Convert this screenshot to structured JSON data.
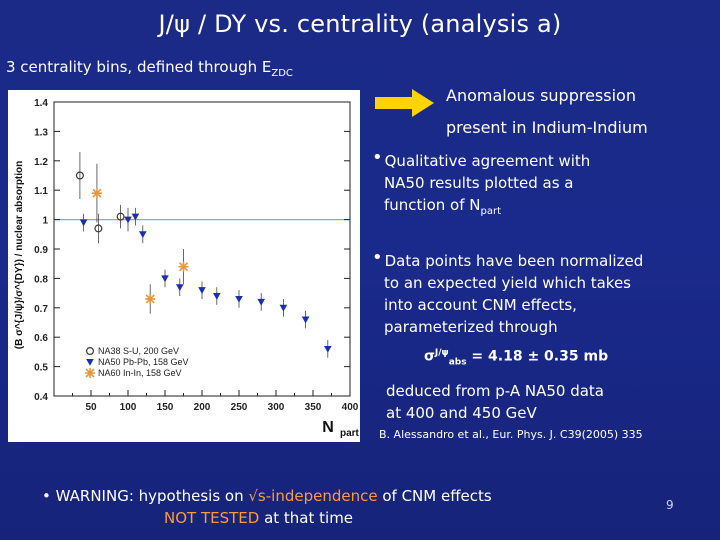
{
  "title": "J/ψ / DY vs. centrality (analysis a)",
  "bins_line": {
    "text": "3 centrality bins, defined through E",
    "sub": "ZDC"
  },
  "anomalous": {
    "line1": "Anomalous suppression",
    "line2": "present in Indium-Indium"
  },
  "bullet1": {
    "line1": "Qualitative agreement with",
    "line2": "NA50 results plotted as a",
    "line3_pre": "function of N",
    "line3_sub": "part"
  },
  "bullet2": {
    "line1": "Data points have been normalized",
    "line2": "to an expected yield which takes",
    "line3": "into account CNM effects,",
    "line4": "parameterized through"
  },
  "sigma": {
    "symbol": "σ",
    "sup": "J/ψ",
    "sub": "abs",
    "rest": " = 4.18 ± 0.35 mb"
  },
  "deduced": {
    "line1": "deduced from p-A NA50 data",
    "line2": "at 400 and 450 GeV"
  },
  "reference": "B. Alessandro et al., Eur. Phys. J. C39(2005) 335",
  "warning": {
    "bullet": "•",
    "pre": "WARNING: hypothesis on ",
    "highlight": "√s-independence",
    "post": " of CNM effects",
    "line2_highlight": "NOT TESTED",
    "line2_post": " at that time"
  },
  "page_number": "9",
  "colors": {
    "background": "#1b2a86",
    "accent": "#ff9a3a",
    "arrow": "#ffd400",
    "s_u": "#3a3a3a",
    "pb_pb": "#1a2fb0",
    "in_in": "#e8963c"
  },
  "chart_data": {
    "type": "scatter",
    "xlabel": "N",
    "xlabel_sub": "part",
    "ylabel": "(B σ^{J/ψ}/σ^{DY}) / nuclear absorption",
    "xlim": [
      0,
      400
    ],
    "ylim": [
      0.4,
      1.4
    ],
    "xticks": [
      "50",
      "100",
      "150",
      "200",
      "250",
      "300",
      "350",
      "400"
    ],
    "yticks": [
      "0.4",
      "0.5",
      "0.6",
      "0.7",
      "0.8",
      "0.9",
      "1",
      "1.1",
      "1.2",
      "1.3",
      "1.4"
    ],
    "reference_line": 1.0,
    "legend_position": "bottom-left",
    "series": [
      {
        "name": "NA38 S-U, 200 GeV",
        "marker": "open-circle",
        "x": [
          35,
          60,
          90
        ],
        "y": [
          1.15,
          0.97,
          1.01
        ],
        "err": [
          0.08,
          0.05,
          0.04
        ]
      },
      {
        "name": "NA50 Pb-Pb, 158 GeV",
        "marker": "triangle-down",
        "x": [
          40,
          100,
          110,
          120,
          150,
          170,
          200,
          220,
          250,
          280,
          310,
          340,
          370
        ],
        "y": [
          0.99,
          1.0,
          1.01,
          0.95,
          0.8,
          0.77,
          0.76,
          0.74,
          0.73,
          0.72,
          0.7,
          0.66,
          0.56
        ],
        "err": [
          0.03,
          0.04,
          0.03,
          0.03,
          0.03,
          0.03,
          0.03,
          0.03,
          0.03,
          0.03,
          0.03,
          0.03,
          0.03
        ]
      },
      {
        "name": "NA60 In-In, 158 GeV",
        "marker": "star",
        "x": [
          58,
          130,
          175
        ],
        "y": [
          1.09,
          0.73,
          0.84
        ],
        "err": [
          0.1,
          0.05,
          0.06
        ]
      }
    ]
  }
}
